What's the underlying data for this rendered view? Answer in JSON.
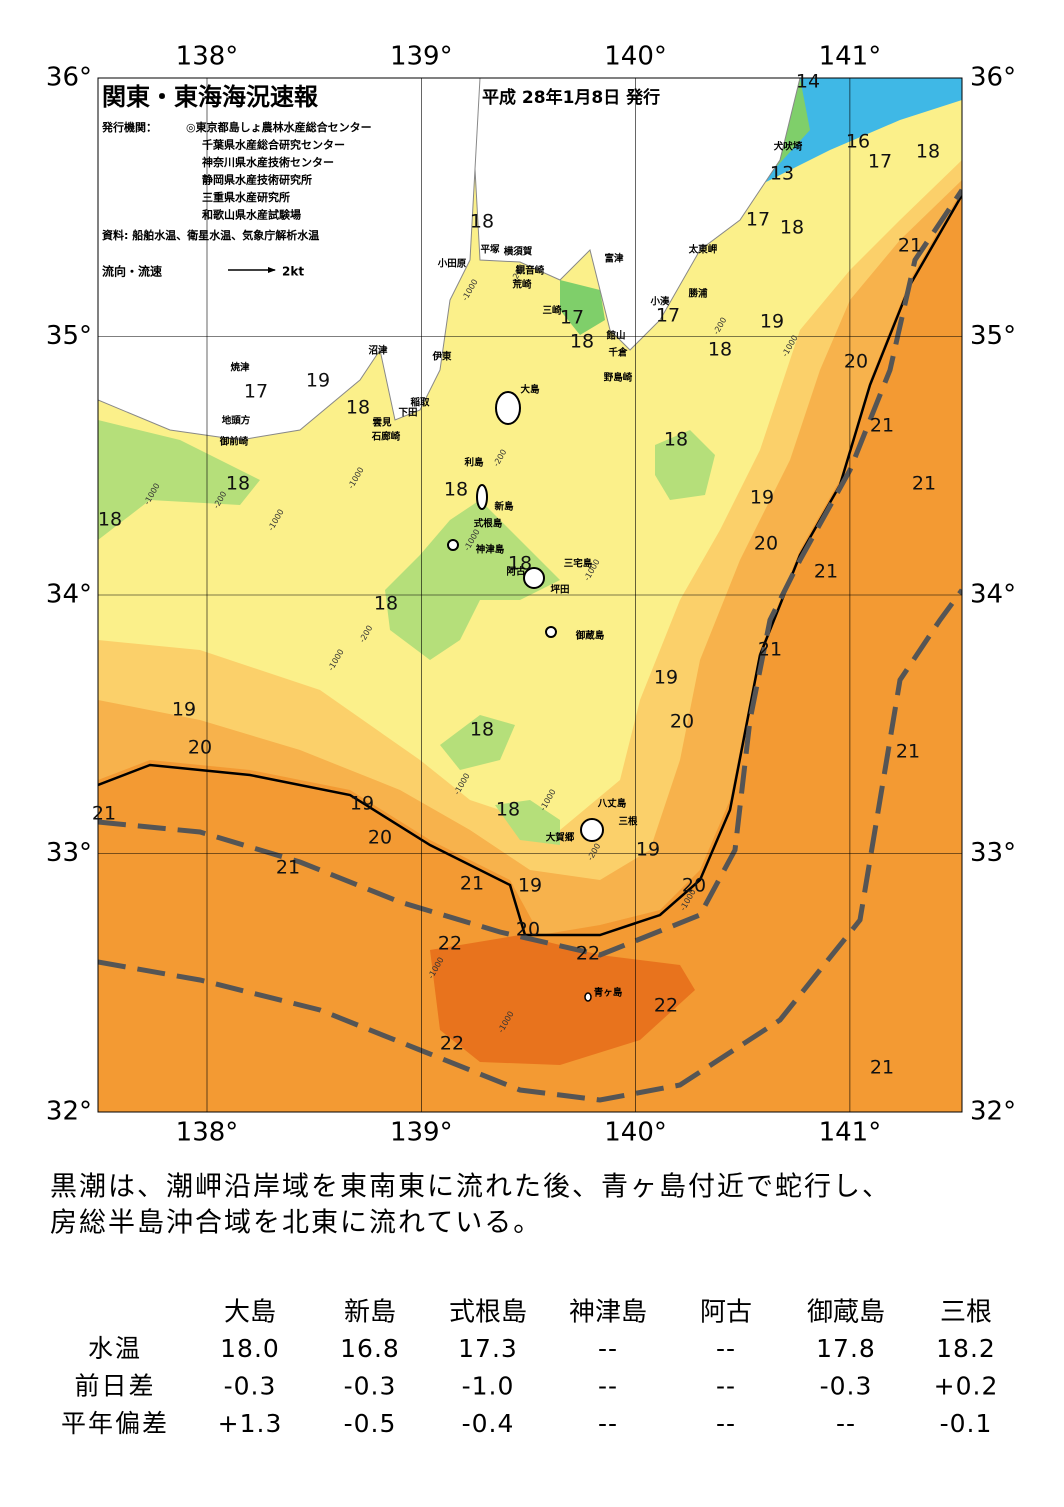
{
  "header": {
    "title": "関東・東海海況速報",
    "date": "平成 28年1月8日 発行",
    "issuer_label": "発行機関：",
    "issuers": [
      "◎東京都島しょ農林水産総合センター",
      "千葉県水産総合研究センター",
      "神奈川県水産技術センター",
      "静岡県水産技術研究所",
      "三重県水産研究所",
      "和歌山県水産試験場"
    ],
    "sources": "資料: 船舶水温、衛星水温、気象庁解析水温",
    "legend_label": "流向・流速",
    "legend_scale": "2kt"
  },
  "map": {
    "lon_ticks": [
      {
        "value": 138,
        "label": "138°"
      },
      {
        "value": 139,
        "label": "139°"
      },
      {
        "value": 140,
        "label": "140°"
      },
      {
        "value": 141,
        "label": "141°"
      }
    ],
    "lat_ticks": [
      {
        "value": 36,
        "label": "36°"
      },
      {
        "value": 35,
        "label": "35°"
      },
      {
        "value": 34,
        "label": "34°"
      },
      {
        "value": 33,
        "label": "33°"
      },
      {
        "value": 32,
        "label": "32°"
      }
    ],
    "isotherm_labels": [
      14,
      16,
      17,
      18,
      13,
      17,
      18,
      21,
      18,
      17,
      18,
      17,
      19,
      18,
      20,
      17,
      19,
      18,
      21,
      18,
      18,
      21,
      18,
      19,
      18,
      20,
      18,
      21,
      18,
      21,
      19,
      19,
      20,
      18,
      20,
      21,
      19,
      18,
      21,
      20,
      19,
      21,
      21,
      19,
      20,
      20,
      22,
      22,
      22,
      22,
      21
    ],
    "places": [
      "犬吠埼",
      "太東岬",
      "勝浦",
      "小湊",
      "館山",
      "千倉",
      "野島崎",
      "富津",
      "横須賀",
      "観音崎",
      "平塚",
      "荒崎",
      "三崎",
      "小田原",
      "伊東",
      "沼津",
      "焼津",
      "稲取",
      "下田",
      "雲見",
      "石廊崎",
      "地頭方",
      "御前崎",
      "大島",
      "利島",
      "新島",
      "式根島",
      "神津島",
      "三宅島",
      "阿古",
      "坪田",
      "御蔵島",
      "八丈島",
      "三根",
      "大賀郷",
      "青ヶ島"
    ],
    "depth_labels": [
      "-200",
      "-1000",
      "-200",
      "-1000",
      "-1000",
      "-1000",
      "-200",
      "-1000",
      "-200",
      "-1000",
      "-1000",
      "-1000",
      "-200",
      "-1000",
      "-1000",
      "-200",
      "-1000",
      "-1000",
      "-1000"
    ]
  },
  "summary": [
    "黒潮は、潮岬沿岸域を東南東に流れた後、青ヶ島付近で蛇行し、",
    "房総半島沖合域を北東に流れている。"
  ],
  "table": {
    "columns": [
      "大島",
      "新島",
      "式根島",
      "神津島",
      "阿古",
      "御蔵島",
      "三根"
    ],
    "rows": [
      [
        "水温",
        "18.0",
        "16.8",
        "17.3",
        "--",
        "--",
        "17.8",
        "18.2"
      ],
      [
        "前日差",
        "-0.3",
        "-0.3",
        "-1.0",
        "--",
        "--",
        "-0.3",
        "+0.2"
      ],
      [
        "平年偏差",
        "+1.3",
        "-0.5",
        "-0.4",
        "--",
        "--",
        "--",
        "-0.1"
      ]
    ]
  }
}
